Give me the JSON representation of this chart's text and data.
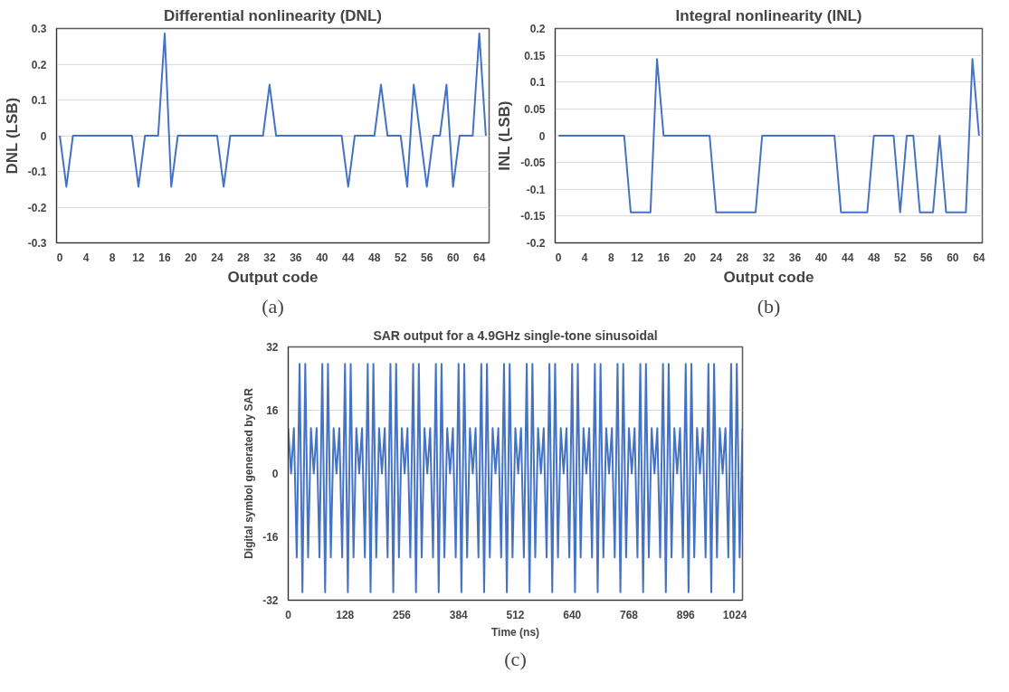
{
  "chart_data": [
    {
      "type": "line",
      "title": "Differential nonlinearity (DNL)",
      "xlabel": "Output code",
      "ylabel": "DNL (LSB)",
      "annotations": [
        "(a)"
      ],
      "grid": "y",
      "marker": "none",
      "line_style": "solid",
      "xlim": [
        -0.5,
        65.5
      ],
      "xticks": [
        0,
        4,
        8,
        12,
        16,
        20,
        24,
        28,
        32,
        36,
        40,
        44,
        48,
        52,
        56,
        60,
        64
      ],
      "ylim": [
        -0.3,
        0.3
      ],
      "yticks": [
        -0.3,
        -0.2,
        -0.1,
        0,
        0.1,
        0.2,
        0.3
      ],
      "series": [
        {
          "color": "#4472c4",
          "x": [
            0,
            1,
            2,
            11,
            12,
            13,
            15,
            16,
            17,
            18,
            24,
            25,
            26,
            31,
            32,
            33,
            43,
            44,
            45,
            48,
            49,
            50,
            52,
            53,
            54,
            55,
            56,
            57,
            58,
            59,
            60,
            61,
            63,
            64,
            65
          ],
          "values": [
            0,
            -0.143,
            0,
            0,
            -0.143,
            0,
            0,
            0.286,
            -0.143,
            0,
            0,
            -0.143,
            0,
            0,
            0.143,
            0,
            0,
            -0.143,
            0,
            0,
            0.143,
            0,
            0,
            -0.143,
            0.143,
            0,
            -0.143,
            0,
            0,
            0.143,
            -0.143,
            0,
            0,
            0.286,
            0
          ]
        }
      ]
    },
    {
      "type": "line",
      "title": "Integral nonlinearity (INL)",
      "xlabel": "Output code",
      "ylabel": "INL (LSB)",
      "annotations": [
        "(b)"
      ],
      "grid": "y",
      "marker": "none",
      "line_style": "solid",
      "xlim": [
        -0.5,
        64.5
      ],
      "xticks": [
        0,
        4,
        8,
        12,
        16,
        20,
        24,
        28,
        32,
        36,
        40,
        44,
        48,
        52,
        56,
        60,
        64
      ],
      "ylim": [
        -0.2,
        0.2
      ],
      "yticks": [
        -0.2,
        -0.15,
        -0.1,
        -0.05,
        0,
        0.05,
        0.1,
        0.15,
        0.2
      ],
      "series": [
        {
          "color": "#4472c4",
          "x": [
            0,
            10,
            11,
            14,
            15,
            16,
            23,
            24,
            30,
            31,
            42,
            43,
            47,
            48,
            51,
            52,
            53,
            54,
            55,
            57,
            58,
            59,
            62,
            63,
            64
          ],
          "values": [
            0,
            0,
            -0.143,
            -0.143,
            0.143,
            0,
            0,
            -0.143,
            -0.143,
            0,
            0,
            -0.143,
            -0.143,
            0,
            0,
            -0.143,
            0,
            0,
            -0.143,
            -0.143,
            0,
            -0.143,
            -0.143,
            0.143,
            0
          ]
        }
      ]
    },
    {
      "type": "line",
      "title": "SAR output for a 4.9GHz single-tone sinusoidal",
      "xlabel": "Time (ns)",
      "ylabel": "Digital symbol generated by SAR",
      "annotations": [
        "(c)"
      ],
      "grid": "y",
      "marker": "none",
      "line_style": "solid",
      "xlim": [
        0,
        1024
      ],
      "xticks": [
        0,
        128,
        256,
        384,
        512,
        640,
        768,
        896,
        1024
      ],
      "ylim": [
        -32,
        32
      ],
      "yticks": [
        -32,
        -16,
        0,
        16,
        32
      ],
      "series": [
        {
          "color": "#4472c4",
          "x": [
            0,
            6.4,
            12.8,
            19.2,
            25.6,
            32,
            38.4,
            44.8,
            51.2,
            57.6,
            64,
            70.4,
            76.8,
            83.2,
            89.6,
            96,
            102.4,
            108.8,
            115.2,
            121.6,
            128,
            134.4,
            140.8,
            147.2,
            153.6,
            160,
            166.4,
            172.8,
            179.2,
            185.6,
            192,
            198.4,
            204.8,
            211.2,
            217.6,
            224,
            230.4,
            236.8,
            243.2,
            249.6,
            256,
            262.4,
            268.8,
            275.2,
            281.6,
            288,
            294.4,
            300.8,
            307.2,
            313.6,
            320,
            326.4,
            332.8,
            339.2,
            345.6,
            352,
            358.4,
            364.8,
            371.2,
            377.6,
            384,
            390.4,
            396.8,
            403.2,
            409.6,
            416,
            422.4,
            428.8,
            435.2,
            441.6,
            448,
            454.4,
            460.8,
            467.2,
            473.6,
            480,
            486.4,
            492.8,
            499.2,
            505.6,
            512,
            518.4,
            524.8,
            531.2,
            537.6,
            544,
            550.4,
            556.8,
            563.2,
            569.6,
            576,
            582.4,
            588.8,
            595.2,
            601.6,
            608,
            614.4,
            620.8,
            627.2,
            633.6,
            640,
            646.4,
            652.8,
            659.2,
            665.6,
            672,
            678.4,
            684.8,
            691.2,
            697.6,
            704,
            710.4,
            716.8,
            723.2,
            729.6,
            736,
            742.4,
            748.8,
            755.2,
            761.6,
            768,
            774.4,
            780.8,
            787.2,
            793.6,
            800,
            806.4,
            812.8,
            819.2,
            825.6,
            832,
            838.4,
            844.8,
            851.2,
            857.6,
            864,
            870.4,
            876.8,
            883.2,
            889.6,
            896,
            902.4,
            908.8,
            915.2,
            921.6,
            928,
            934.4,
            940.8,
            947.2,
            953.6,
            960,
            966.4,
            972.8,
            979.2,
            985.6,
            992,
            998.4,
            1004.8,
            1011.2,
            1017.6,
            1024
          ],
          "values": [
            11.5,
            0,
            11.5,
            -21.2,
            27.7,
            -30,
            27.7,
            -21.2,
            11.5,
            0,
            11.5,
            -21.2,
            27.7,
            -30,
            27.7,
            -21.2,
            11.5,
            0,
            11.5,
            -21.2,
            27.7,
            -30,
            27.7,
            -21.2,
            11.5,
            0,
            11.5,
            -21.2,
            27.7,
            -30,
            27.7,
            -21.2,
            11.5,
            0,
            11.5,
            -21.2,
            27.7,
            -30,
            27.7,
            -21.2,
            11.5,
            0,
            11.5,
            -21.2,
            27.7,
            -30,
            27.7,
            -21.2,
            11.5,
            0,
            11.5,
            -21.2,
            27.7,
            -30,
            27.7,
            -21.2,
            11.5,
            0,
            11.5,
            -21.2,
            27.7,
            -30,
            27.7,
            -21.2,
            11.5,
            0,
            11.5,
            -21.2,
            27.7,
            -30,
            27.7,
            -21.2,
            11.5,
            0,
            11.5,
            -21.2,
            27.7,
            -30,
            27.7,
            -21.2,
            11.5,
            0,
            11.5,
            -21.2,
            27.7,
            -30,
            27.7,
            -21.2,
            11.5,
            0,
            11.5,
            -21.2,
            27.7,
            -30,
            27.7,
            -21.2,
            11.5,
            0,
            11.5,
            -21.2,
            27.7,
            -30,
            27.7,
            -21.2,
            11.5,
            0,
            11.5,
            -21.2,
            27.7,
            -30,
            27.7,
            -21.2,
            11.5,
            0,
            11.5,
            -21.2,
            27.7,
            -30,
            27.7,
            -21.2,
            11.5,
            0,
            11.5,
            -21.2,
            27.7,
            -30,
            27.7,
            -21.2,
            11.5,
            0,
            11.5,
            -21.2,
            27.7,
            -30,
            27.7,
            -21.2,
            11.5,
            0,
            11.5,
            -21.2,
            27.7,
            -30,
            27.7,
            -21.2,
            11.5,
            0,
            11.5,
            -21.2,
            27.7,
            -30,
            27.7,
            -21.2,
            11.5,
            0,
            11.5,
            -21.2,
            27.7,
            -30,
            27.7,
            -21.2,
            11.5
          ]
        }
      ]
    }
  ]
}
